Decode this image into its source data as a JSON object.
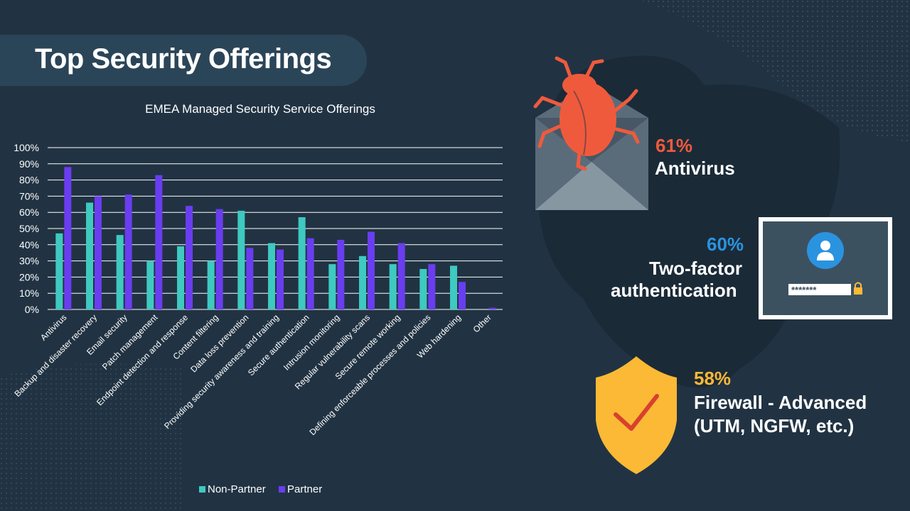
{
  "slide": {
    "title": "Top Security Offerings"
  },
  "colors": {
    "background": "#213343",
    "non_partner": "#3ec9c1",
    "partner": "#6a3df0",
    "antivirus_accent": "#f05a3c",
    "two_factor_accent": "#2a93e0",
    "firewall_accent": "#fbb935"
  },
  "highlights": [
    {
      "percent": "61%",
      "label": "Antivirus",
      "icon": "bug-envelope-icon"
    },
    {
      "percent": "60%",
      "label_line1": "Two-factor",
      "label_line2": "authentication",
      "icon": "password-login-icon",
      "password_mask": "*******"
    },
    {
      "percent": "58%",
      "label_line1": "Firewall -  Advanced",
      "label_line2": "(UTM,  NGFW, etc.)",
      "icon": "shield-check-icon"
    }
  ],
  "chart_data": {
    "type": "bar",
    "title": "EMEA Managed Security Service Offerings",
    "xlabel": "",
    "ylabel": "",
    "ylim": [
      0,
      100
    ],
    "yticks": [
      "0%",
      "10%",
      "20%",
      "30%",
      "40%",
      "50%",
      "60%",
      "70%",
      "80%",
      "90%",
      "100%"
    ],
    "grid": true,
    "legend_position": "bottom",
    "categories": [
      "Antivirus",
      "Backup and disaster recovery",
      "Email security",
      "Patch management",
      "Endpoint detection and response",
      "Content filtering",
      "Data loss prevention",
      "Providing security awareness and training",
      "Secure authentication",
      "Intrusion monitoring",
      "Regular vulnerability scans",
      "Secure remote working",
      "Defining enforceable processes and policies",
      "Web hardening",
      "Other"
    ],
    "series": [
      {
        "name": "Non-Partner",
        "color": "#3ec9c1",
        "values": [
          47,
          66,
          46,
          30,
          39,
          30,
          61,
          41,
          57,
          28,
          33,
          28,
          25,
          27,
          0
        ]
      },
      {
        "name": "Partner",
        "color": "#6a3df0",
        "values": [
          88,
          70,
          71,
          83,
          64,
          62,
          38,
          37,
          44,
          43,
          48,
          41,
          28,
          17,
          1
        ]
      }
    ]
  }
}
